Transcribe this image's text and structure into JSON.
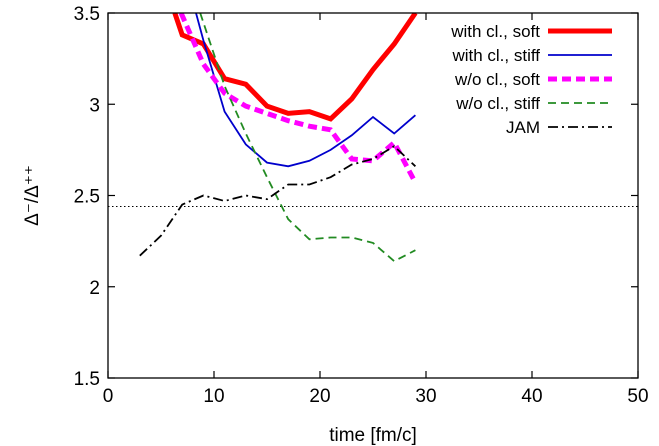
{
  "chart_data": {
    "type": "line",
    "xlabel": "time [fm/c]",
    "ylabel": "Δ⁻/Δ⁺⁺",
    "xlim": [
      0,
      50
    ],
    "ylim": [
      1.5,
      3.5
    ],
    "xticks": [
      0,
      10,
      20,
      30,
      40,
      50
    ],
    "xtick_labels": [
      "0",
      "10",
      "20",
      "30",
      "40",
      "50"
    ],
    "yticks": [
      1.5,
      2,
      2.5,
      3,
      3.5
    ],
    "ytick_labels": [
      "1.5",
      "2",
      "2.5",
      "3",
      "3.5"
    ],
    "grid": false,
    "legend_position": "top-right",
    "reference_line": {
      "y": 2.44,
      "style": "dotted",
      "color": "#000000"
    },
    "series": [
      {
        "name": "with cl., soft",
        "color": "#ff0000",
        "dash": "solid",
        "x": [
          6.3,
          7,
          9,
          11,
          13,
          15,
          17,
          19,
          21,
          23,
          25,
          27,
          29
        ],
        "y": [
          3.5,
          3.38,
          3.33,
          3.14,
          3.11,
          2.99,
          2.95,
          2.96,
          2.92,
          3.03,
          3.19,
          3.33,
          3.5
        ]
      },
      {
        "name": "with cl., stiff",
        "color": "#0000cc",
        "dash": "solid",
        "x": [
          8.3,
          9,
          11,
          13,
          15,
          17,
          19,
          21,
          23,
          25,
          27,
          29
        ],
        "y": [
          3.5,
          3.35,
          2.96,
          2.78,
          2.68,
          2.66,
          2.69,
          2.75,
          2.83,
          2.93,
          2.84,
          2.94
        ]
      },
      {
        "name": "w/o cl., soft",
        "color": "#ff00ff",
        "dash": "dashed",
        "x": [
          6.9,
          9,
          11,
          13,
          15,
          17,
          19,
          21,
          23,
          25,
          27,
          29
        ],
        "y": [
          3.5,
          3.22,
          3.06,
          2.99,
          2.95,
          2.91,
          2.88,
          2.86,
          2.7,
          2.69,
          2.79,
          2.57
        ]
      },
      {
        "name": "w/o cl., stiff",
        "color": "#228b22",
        "dash": "dashed",
        "x": [
          8.7,
          11,
          13,
          15,
          17,
          19,
          21,
          23,
          25,
          27,
          29
        ],
        "y": [
          3.5,
          3.1,
          2.84,
          2.6,
          2.37,
          2.26,
          2.27,
          2.27,
          2.24,
          2.14,
          2.2
        ]
      },
      {
        "name": "JAM",
        "color": "#000000",
        "dash": "dashdot",
        "x": [
          3,
          5,
          7,
          9,
          11,
          13,
          15,
          17,
          19,
          21,
          23,
          25,
          27,
          29
        ],
        "y": [
          2.17,
          2.28,
          2.45,
          2.5,
          2.47,
          2.5,
          2.48,
          2.56,
          2.56,
          2.6,
          2.67,
          2.7,
          2.77,
          2.66
        ]
      }
    ]
  }
}
